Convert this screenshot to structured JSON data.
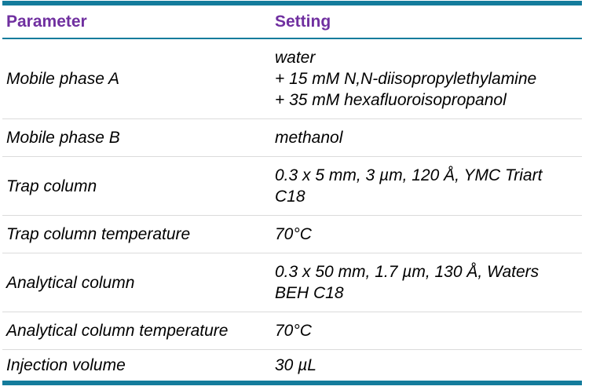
{
  "colors": {
    "accent_teal": "#147C9C",
    "header_text_purple": "#7030A0",
    "row_divider_gray": "#DBDBDB",
    "body_text": "#000000",
    "background": "#FFFFFF"
  },
  "table": {
    "columns": [
      "Parameter",
      "Setting"
    ],
    "rows": [
      {
        "parameter": "Mobile phase A",
        "setting": "water\n+ 15 mM N,N-diisopropylethylamine\n+ 35 mM hexafluoroisopropanol"
      },
      {
        "parameter": "Mobile phase B",
        "setting": "methanol"
      },
      {
        "parameter": "Trap column",
        "setting": "0.3 x 5 mm, 3 µm, 120 Å, YMC Triart C18"
      },
      {
        "parameter": "Trap column temperature",
        "setting": "70°C"
      },
      {
        "parameter": "Analytical column",
        "setting": "0.3 x 50 mm, 1.7 µm, 130 Å, Waters BEH C18"
      },
      {
        "parameter": "Analytical column temperature",
        "setting": "70°C"
      },
      {
        "parameter": "Injection volume",
        "setting": "30 µL"
      }
    ]
  }
}
